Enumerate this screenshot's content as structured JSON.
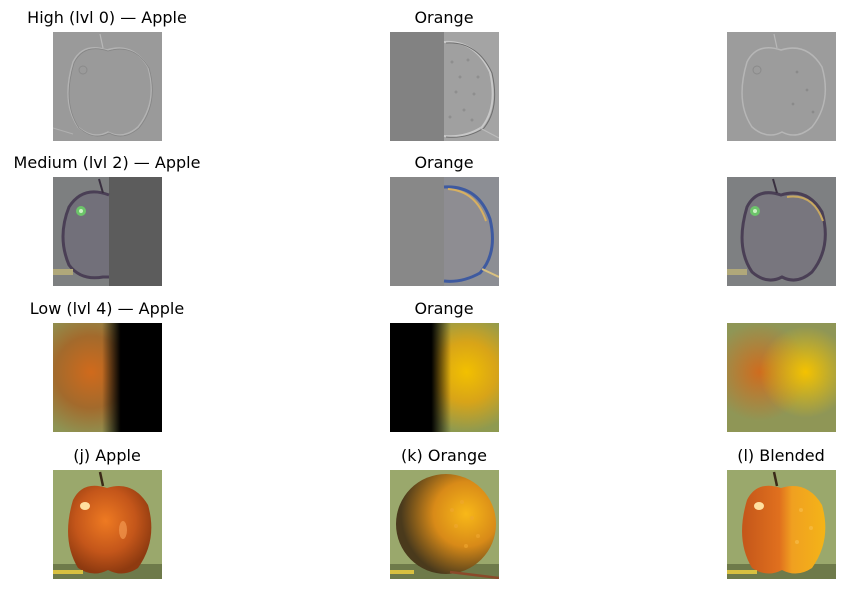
{
  "rows": [
    {
      "titles": [
        "High (lvl 0) — Apple",
        "Orange",
        ""
      ]
    },
    {
      "titles": [
        "Medium (lvl 2) — Apple",
        "Orange",
        ""
      ]
    },
    {
      "titles": [
        "Low (lvl 4) — Apple",
        "Orange",
        ""
      ]
    },
    {
      "titles": [
        "(j) Apple",
        "(k) Orange",
        "(l) Blended"
      ]
    }
  ]
}
